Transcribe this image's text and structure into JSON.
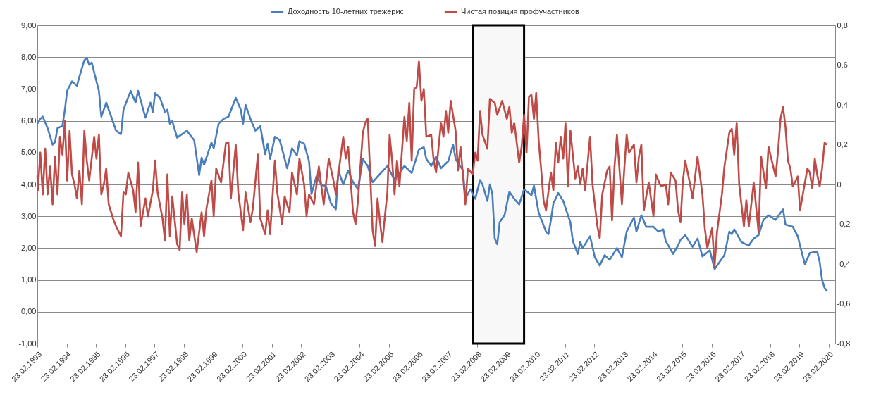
{
  "chart_data": {
    "type": "line",
    "legend": "top",
    "grid": "y",
    "xlim": [
      "1993-02-23",
      "2020-05-12"
    ],
    "xticks": [
      {
        "value": "1993-02-23",
        "label": "23.02.1993"
      },
      {
        "value": "1994-02-23",
        "label": "23.02.1994"
      },
      {
        "value": "1995-02-23",
        "label": "23.02.1995"
      },
      {
        "value": "1996-02-23",
        "label": "23.02.1996"
      },
      {
        "value": "1997-02-23",
        "label": "23.02.1997"
      },
      {
        "value": "1998-02-23",
        "label": "23.02.1998"
      },
      {
        "value": "1999-02-23",
        "label": "23.02.1999"
      },
      {
        "value": "2000-02-23",
        "label": "23.02.2000"
      },
      {
        "value": "2001-02-23",
        "label": "23.02.2001"
      },
      {
        "value": "2002-02-23",
        "label": "23.02.2002"
      },
      {
        "value": "2003-02-23",
        "label": "23.02.2003"
      },
      {
        "value": "2004-02-23",
        "label": "23.02.2004"
      },
      {
        "value": "2005-02-23",
        "label": "23.02.2005"
      },
      {
        "value": "2006-02-23",
        "label": "23.02.2006"
      },
      {
        "value": "2007-02-23",
        "label": "23.02.2007"
      },
      {
        "value": "2008-02-23",
        "label": "23.02.2008"
      },
      {
        "value": "2009-02-23",
        "label": "23.02.2009"
      },
      {
        "value": "2010-02-23",
        "label": "23.02.2010"
      },
      {
        "value": "2011-02-23",
        "label": "23.02.2011"
      },
      {
        "value": "2012-02-23",
        "label": "23.02.2012"
      },
      {
        "value": "2013-02-23",
        "label": "23.02.2013"
      },
      {
        "value": "2014-02-23",
        "label": "23.02.2014"
      },
      {
        "value": "2015-02-23",
        "label": "23.02.2015"
      },
      {
        "value": "2016-02-23",
        "label": "23.02.2016"
      },
      {
        "value": "2017-02-23",
        "label": "23.02.2017"
      },
      {
        "value": "2018-02-23",
        "label": "23.02.2018"
      },
      {
        "value": "2019-02-23",
        "label": "23.02.2019"
      },
      {
        "value": "2020-02-23",
        "label": "23.02.2020"
      }
    ],
    "ylim": [
      -1,
      9
    ],
    "yticks": [
      {
        "value": -1,
        "label": "-1,00"
      },
      {
        "value": 0,
        "label": "0,00"
      },
      {
        "value": 1,
        "label": "1,00"
      },
      {
        "value": 2,
        "label": "2,00"
      },
      {
        "value": 3,
        "label": "3,00"
      },
      {
        "value": 4,
        "label": "4,00"
      },
      {
        "value": 5,
        "label": "5,00"
      },
      {
        "value": 6,
        "label": "6,00"
      },
      {
        "value": 7,
        "label": "7,00"
      },
      {
        "value": 8,
        "label": "8,00"
      },
      {
        "value": 9,
        "label": "9,00"
      }
    ],
    "y2lim": [
      -0.8,
      0.8
    ],
    "y2ticks": [
      {
        "value": -0.8,
        "label": "-0,8"
      },
      {
        "value": -0.6,
        "label": "-0,6"
      },
      {
        "value": -0.4,
        "label": "-0,4"
      },
      {
        "value": -0.2,
        "label": "-0,2"
      },
      0,
      {
        "value": 0.2,
        "label": "0,2"
      },
      {
        "value": 0.4,
        "label": "0,4"
      },
      {
        "value": 0.6,
        "label": "0,6"
      },
      {
        "value": 0.8,
        "label": "0,8"
      }
    ],
    "bands": [
      {
        "axis": "x",
        "from": "2008-01",
        "to": "2009-10",
        "color": "#f8f8f8"
      }
    ],
    "series": [
      {
        "name": "Доходность 10-летних трежерис",
        "color": "#4a7ebb",
        "x": [
          "1993-02-23",
          "1993-04",
          "1993-05",
          "1993-07",
          "1993-09",
          "1993-10",
          "1993-11",
          "1994-01",
          "1994-02",
          "1994-03",
          "1994-05",
          "1994-07",
          "1994-08",
          "1994-10",
          "1994-11",
          "1994-12",
          "1995-01",
          "1995-03",
          "1995-04",
          "1995-05",
          "1995-07",
          "1995-09",
          "1995-11",
          "1996-01",
          "1996-02",
          "1996-05",
          "1996-07",
          "1996-08",
          "1996-11",
          "1997-01",
          "1997-02",
          "1997-03",
          "1997-05",
          "1997-07",
          "1997-08",
          "1997-09",
          "1997-10",
          "1997-12",
          "1998-04",
          "1998-07",
          "1998-09",
          "1998-10",
          "1998-11",
          "1999-02",
          "1999-03",
          "1999-05",
          "1999-07",
          "1999-09",
          "1999-12",
          "2000-02",
          "2000-03",
          "2000-04",
          "2000-06",
          "2000-08",
          "2000-10",
          "2000-12",
          "2001-01",
          "2001-02",
          "2001-04",
          "2001-06",
          "2001-09",
          "2001-11",
          "2002-01",
          "2002-02",
          "2002-04",
          "2002-06",
          "2002-07",
          "2002-09",
          "2002-11",
          "2003-01",
          "2003-03",
          "2003-05",
          "2003-06",
          "2003-08",
          "2003-10",
          "2003-12",
          "2004-02",
          "2004-04",
          "2004-06",
          "2004-08",
          "2004-11",
          "2005-02",
          "2005-05",
          "2005-09",
          "2005-12",
          "2006-03",
          "2006-05",
          "2006-06",
          "2006-08",
          "2006-10",
          "2006-12",
          "2007-03",
          "2007-05",
          "2007-06",
          "2007-09",
          "2007-10",
          "2007-12",
          "2008-02",
          "2008-04",
          "2008-05",
          "2008-07",
          "2008-08",
          "2008-09",
          "2008-10",
          "2008-11",
          "2008-12",
          "2009-02",
          "2009-04",
          "2009-06",
          "2009-08",
          "2009-10",
          "2010-01",
          "2010-02",
          "2010-04",
          "2010-07",
          "2010-08",
          "2010-09",
          "2010-10",
          "2010-12",
          "2011-02",
          "2011-04",
          "2011-05",
          "2011-06",
          "2011-08",
          "2011-09",
          "2011-10",
          "2012-01",
          "2012-03",
          "2012-05",
          "2012-07",
          "2012-09",
          "2012-12",
          "2013-02",
          "2013-04",
          "2013-07",
          "2013-08",
          "2013-10",
          "2013-12",
          "2014-03",
          "2014-05",
          "2014-07",
          "2014-08",
          "2014-11",
          "2015-01",
          "2015-02",
          "2015-04",
          "2015-07",
          "2015-09",
          "2015-11",
          "2016-02",
          "2016-04",
          "2016-06",
          "2016-08",
          "2016-10",
          "2016-11",
          "2016-12",
          "2017-03",
          "2017-06",
          "2017-08",
          "2017-10",
          "2017-12",
          "2018-02",
          "2018-05",
          "2018-08",
          "2018-09",
          "2018-12",
          "2019-02",
          "2019-03",
          "2019-05",
          "2019-07",
          "2019-10",
          "2019-11",
          "2019-12",
          "2020-01",
          "2020-02"
        ],
        "values": [
          5.91,
          6.06,
          6.13,
          5.77,
          5.25,
          5.33,
          5.77,
          5.84,
          6.35,
          6.94,
          7.24,
          7.1,
          7.39,
          7.9,
          7.98,
          7.76,
          7.83,
          7.24,
          6.94,
          6.13,
          6.57,
          6.13,
          5.69,
          5.58,
          6.35,
          6.94,
          6.57,
          6.94,
          6.1,
          6.57,
          6.28,
          6.87,
          6.72,
          6.28,
          6.35,
          5.91,
          5.99,
          5.47,
          5.69,
          5.39,
          4.29,
          4.84,
          4.62,
          5.32,
          5.14,
          5.91,
          6.06,
          6.13,
          6.72,
          6.35,
          5.91,
          6.5,
          6.06,
          5.69,
          5.84,
          4.95,
          5.28,
          4.8,
          5.5,
          5.39,
          4.51,
          5.14,
          4.91,
          5.36,
          5.28,
          4.73,
          3.7,
          4.25,
          4.0,
          3.92,
          3.4,
          3.22,
          4.44,
          4.0,
          4.44,
          4.07,
          3.85,
          4.8,
          4.58,
          4.07,
          4.33,
          4.58,
          4.14,
          4.58,
          4.36,
          5.1,
          5.17,
          4.8,
          4.58,
          4.88,
          4.51,
          4.73,
          5.25,
          4.8,
          4.44,
          3.55,
          3.85,
          3.55,
          4.14,
          4.0,
          3.48,
          4.0,
          3.7,
          2.3,
          2.12,
          2.81,
          3.05,
          3.77,
          3.55,
          3.37,
          3.85,
          3.66,
          3.96,
          3.11,
          2.52,
          2.44,
          2.89,
          3.4,
          3.73,
          3.48,
          3.03,
          2.81,
          2.22,
          1.82,
          2.19,
          2.0,
          2.37,
          1.71,
          1.45,
          1.78,
          1.63,
          2.0,
          1.71,
          2.52,
          2.96,
          2.52,
          3.03,
          2.67,
          2.67,
          2.52,
          2.59,
          2.22,
          1.82,
          2.08,
          2.26,
          2.41,
          2.04,
          2.3,
          1.74,
          1.93,
          1.34,
          1.56,
          1.78,
          2.52,
          2.44,
          2.59,
          2.19,
          2.08,
          2.3,
          2.41,
          2.89,
          3.03,
          2.89,
          3.22,
          2.74,
          2.67,
          2.37,
          2.08,
          1.49,
          1.85,
          1.89,
          1.56,
          1.0,
          0.75,
          0.64
        ]
      },
      {
        "name": "Чистая позиция профучастников",
        "color": "#be4b48",
        "axis": "y2",
        "x": [
          "1993-02-23",
          "1993-03",
          "1993-04",
          "1993-05",
          "1993-06",
          "1993-07",
          "1993-08",
          "1993-09",
          "1993-10",
          "1993-11",
          "1993-12",
          "1994-01",
          "1994-02",
          "1994-03",
          "1994-04",
          "1994-05",
          "1994-06",
          "1994-07",
          "1994-08",
          "1994-09",
          "1994-10",
          "1994-11",
          "1994-12",
          "1995-02",
          "1995-03",
          "1995-04",
          "1995-05",
          "1995-06",
          "1995-07",
          "1995-08",
          "1995-10",
          "1995-11",
          "1996-01",
          "1996-02",
          "1996-03",
          "1996-04",
          "1996-06",
          "1996-07",
          "1996-08",
          "1996-09",
          "1996-11",
          "1996-12",
          "1997-02",
          "1997-03",
          "1997-04",
          "1997-06",
          "1997-07",
          "1997-08",
          "1997-09",
          "1997-10",
          "1997-12",
          "1998-01",
          "1998-02",
          "1998-03",
          "1998-04",
          "1998-05",
          "1998-06",
          "1998-08",
          "1998-09",
          "1998-10",
          "1998-11",
          "1998-12",
          "1999-02",
          "1999-03",
          "1999-04",
          "1999-06",
          "1999-08",
          "1999-09",
          "1999-10",
          "1999-12",
          "2000-01",
          "2000-03",
          "2000-04",
          "2000-06",
          "2000-07",
          "2000-09",
          "2000-10",
          "2000-12",
          "2001-01",
          "2001-02",
          "2001-04",
          "2001-05",
          "2001-07",
          "2001-08",
          "2001-10",
          "2001-11",
          "2002-01",
          "2002-02",
          "2002-04",
          "2002-05",
          "2002-06",
          "2002-08",
          "2002-10",
          "2002-12",
          "2003-02",
          "2003-04",
          "2003-05",
          "2003-06",
          "2003-08",
          "2003-09",
          "2003-10",
          "2003-12",
          "2004-01",
          "2004-02",
          "2004-04",
          "2004-05",
          "2004-06",
          "2004-07",
          "2004-08",
          "2004-09",
          "2004-10",
          "2004-11",
          "2004-12",
          "2005-01",
          "2005-02",
          "2005-03",
          "2005-04",
          "2005-05",
          "2005-06",
          "2005-07",
          "2005-09",
          "2005-10",
          "2005-11",
          "2005-12",
          "2006-01",
          "2006-02",
          "2006-03",
          "2006-04",
          "2006-05",
          "2006-06",
          "2006-08",
          "2006-09",
          "2006-10",
          "2006-12",
          "2007-01",
          "2007-02",
          "2007-03",
          "2007-04",
          "2007-06",
          "2007-07",
          "2007-08",
          "2007-10",
          "2007-11",
          "2008-01",
          "2008-02",
          "2008-03",
          "2008-04",
          "2008-05",
          "2008-07",
          "2008-08",
          "2008-10",
          "2008-11",
          "2009-01",
          "2009-03",
          "2009-04",
          "2009-05",
          "2009-06",
          "2009-08",
          "2009-09",
          "2009-10",
          "2009-11",
          "2009-12",
          "2010-01",
          "2010-02",
          "2010-03",
          "2010-04",
          "2010-05",
          "2010-06",
          "2010-07",
          "2010-09",
          "2010-10",
          "2010-11",
          "2010-12",
          "2011-01",
          "2011-02",
          "2011-03",
          "2011-04",
          "2011-05",
          "2011-07",
          "2011-08",
          "2011-09",
          "2011-10",
          "2011-11",
          "2012-01",
          "2012-02",
          "2012-04",
          "2012-05",
          "2012-06",
          "2012-08",
          "2012-09",
          "2012-10",
          "2012-11",
          "2012-12",
          "2013-01",
          "2013-02",
          "2013-04",
          "2013-05",
          "2013-07",
          "2013-08",
          "2013-09",
          "2013-10",
          "2013-11",
          "2014-01",
          "2014-03",
          "2014-04",
          "2014-06",
          "2014-08",
          "2014-09",
          "2014-10",
          "2014-12",
          "2015-01",
          "2015-02",
          "2015-03",
          "2015-04",
          "2015-06",
          "2015-07",
          "2015-09",
          "2015-11",
          "2015-12",
          "2016-01",
          "2016-03",
          "2016-04",
          "2016-05",
          "2016-07",
          "2016-08",
          "2016-10",
          "2016-11",
          "2016-12",
          "2017-01",
          "2017-02",
          "2017-04",
          "2017-05",
          "2017-06",
          "2017-08",
          "2017-10",
          "2017-11",
          "2018-01",
          "2018-02",
          "2018-04",
          "2018-05",
          "2018-06",
          "2018-07",
          "2018-08",
          "2018-09",
          "2018-10",
          "2018-11",
          "2018-12",
          "2019-02",
          "2019-03",
          "2019-05",
          "2019-06",
          "2019-07",
          "2019-08",
          "2019-09",
          "2019-10",
          "2019-11",
          "2019-12",
          "2020-01",
          "2020-02"
        ],
        "values": [
          0.05,
          -0.03,
          0.16,
          -0.05,
          0.18,
          -0.05,
          0.09,
          -0.1,
          0.14,
          -0.05,
          0.24,
          0.15,
          0.32,
          0.02,
          0.27,
          0.05,
          0.0,
          -0.07,
          0.07,
          -0.1,
          0.27,
          0.12,
          0.02,
          0.24,
          0.13,
          0.25,
          -0.05,
          0.0,
          0.08,
          -0.1,
          -0.18,
          -0.21,
          -0.26,
          -0.04,
          -0.05,
          0.06,
          -0.03,
          -0.14,
          0.11,
          -0.21,
          -0.07,
          -0.16,
          -0.03,
          0.12,
          -0.04,
          -0.17,
          -0.28,
          0.05,
          -0.26,
          -0.06,
          -0.3,
          -0.33,
          -0.04,
          -0.2,
          -0.05,
          -0.28,
          -0.17,
          -0.34,
          -0.24,
          -0.14,
          -0.26,
          -0.12,
          0.02,
          -0.16,
          0.08,
          0.01,
          0.21,
          0.21,
          -0.07,
          0.2,
          -0.04,
          -0.23,
          -0.04,
          -0.19,
          -0.12,
          0.15,
          -0.17,
          -0.25,
          -0.13,
          -0.25,
          0.12,
          -0.04,
          -0.2,
          -0.06,
          -0.14,
          0.06,
          -0.05,
          0.13,
          0.0,
          -0.16,
          -0.05,
          -0.1,
          0.09,
          -0.1,
          0.13,
          0.02,
          -0.05,
          0.05,
          0.24,
          0.13,
          0.19,
          -0.14,
          -0.2,
          -0.08,
          0.26,
          0.31,
          0.33,
          0.06,
          -0.23,
          -0.31,
          -0.07,
          -0.19,
          -0.29,
          -0.16,
          -0.04,
          0.25,
          0.12,
          -0.05,
          0.12,
          -0.01,
          0.34,
          0.22,
          0.41,
          0.12,
          0.48,
          0.49,
          0.62,
          0.42,
          0.48,
          0.24,
          0.25,
          0.12,
          0.06,
          0.31,
          0.24,
          0.37,
          0.26,
          0.42,
          0.27,
          0.07,
          0.19,
          -0.1,
          0.08,
          0.05,
          0.16,
          0.12,
          0.37,
          0.25,
          0.18,
          0.43,
          0.41,
          0.35,
          0.42,
          0.33,
          0.39,
          0.26,
          0.31,
          0.11,
          0.19,
          0.35,
          0.16,
          0.44,
          0.45,
          0.33,
          0.46,
          0.22,
          0.08,
          -0.08,
          -0.13,
          0.06,
          -0.03,
          0.21,
          0.11,
          0.24,
          0.13,
          0.31,
          -0.01,
          0.27,
          0.03,
          0.09,
          0.0,
          0.08,
          -0.03,
          0.24,
          0.0,
          -0.21,
          -0.27,
          -0.05,
          0.07,
          0.09,
          -0.18,
          0.09,
          0.25,
          0.08,
          -0.1,
          0.25,
          0.16,
          0.2,
          0.01,
          0.14,
          0.2,
          -0.13,
          0.01,
          -0.16,
          0.05,
          -0.01,
          0.0,
          -0.1,
          0.06,
          0.02,
          -0.13,
          -0.19,
          0.01,
          0.12,
          0.0,
          -0.07,
          0.14,
          -0.05,
          -0.22,
          -0.32,
          -0.22,
          -0.41,
          -0.24,
          -0.05,
          0.09,
          0.26,
          0.28,
          0.15,
          0.31,
          0.0,
          -0.21,
          -0.08,
          -0.21,
          0.01,
          -0.24,
          0.14,
          -0.02,
          0.19,
          0.09,
          0.04,
          0.17,
          0.33,
          0.39,
          0.29,
          0.12,
          0.08,
          -0.01,
          0.04,
          -0.13,
          0.01,
          0.08,
          0.06,
          -0.02,
          0.13,
          0.05,
          -0.01,
          0.08,
          0.21,
          0.2
        ]
      }
    ]
  }
}
